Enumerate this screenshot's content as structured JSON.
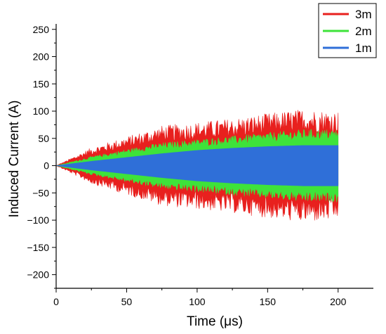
{
  "chart_data": {
    "type": "area",
    "title": "",
    "xlabel": "Time (μs)",
    "ylabel": "Induced Current (A)",
    "xlim": [
      0,
      225
    ],
    "ylim": [
      -225,
      260
    ],
    "xticks": [
      0,
      50,
      100,
      150,
      200
    ],
    "yticks": [
      250,
      200,
      150,
      100,
      50,
      0,
      -50,
      -100,
      -150,
      -200
    ],
    "grid": false,
    "legend_position": "top-right",
    "series": [
      {
        "name": "3m",
        "color": "#e8201e",
        "envelope_x": [
          0,
          25,
          50,
          75,
          100,
          125,
          150,
          175,
          200
        ],
        "envelope_upper": [
          0,
          25,
          40,
          55,
          60,
          65,
          72,
          78,
          75
        ],
        "envelope_lower": [
          0,
          -25,
          -40,
          -55,
          -60,
          -65,
          -72,
          -78,
          -75
        ]
      },
      {
        "name": "2m",
        "color": "#3ee33a",
        "envelope_x": [
          0,
          25,
          50,
          75,
          100,
          125,
          150,
          175,
          200
        ],
        "envelope_upper": [
          0,
          14,
          25,
          35,
          40,
          45,
          50,
          55,
          55
        ],
        "envelope_lower": [
          0,
          -14,
          -25,
          -35,
          -40,
          -45,
          -50,
          -55,
          -55
        ]
      },
      {
        "name": "1m",
        "color": "#2f6fd8",
        "envelope_x": [
          0,
          25,
          50,
          75,
          100,
          125,
          150,
          175,
          200
        ],
        "envelope_upper": [
          0,
          8,
          15,
          22,
          28,
          32,
          35,
          37,
          37
        ],
        "envelope_lower": [
          0,
          -8,
          -15,
          -22,
          -28,
          -32,
          -35,
          -37,
          -37
        ]
      }
    ]
  }
}
